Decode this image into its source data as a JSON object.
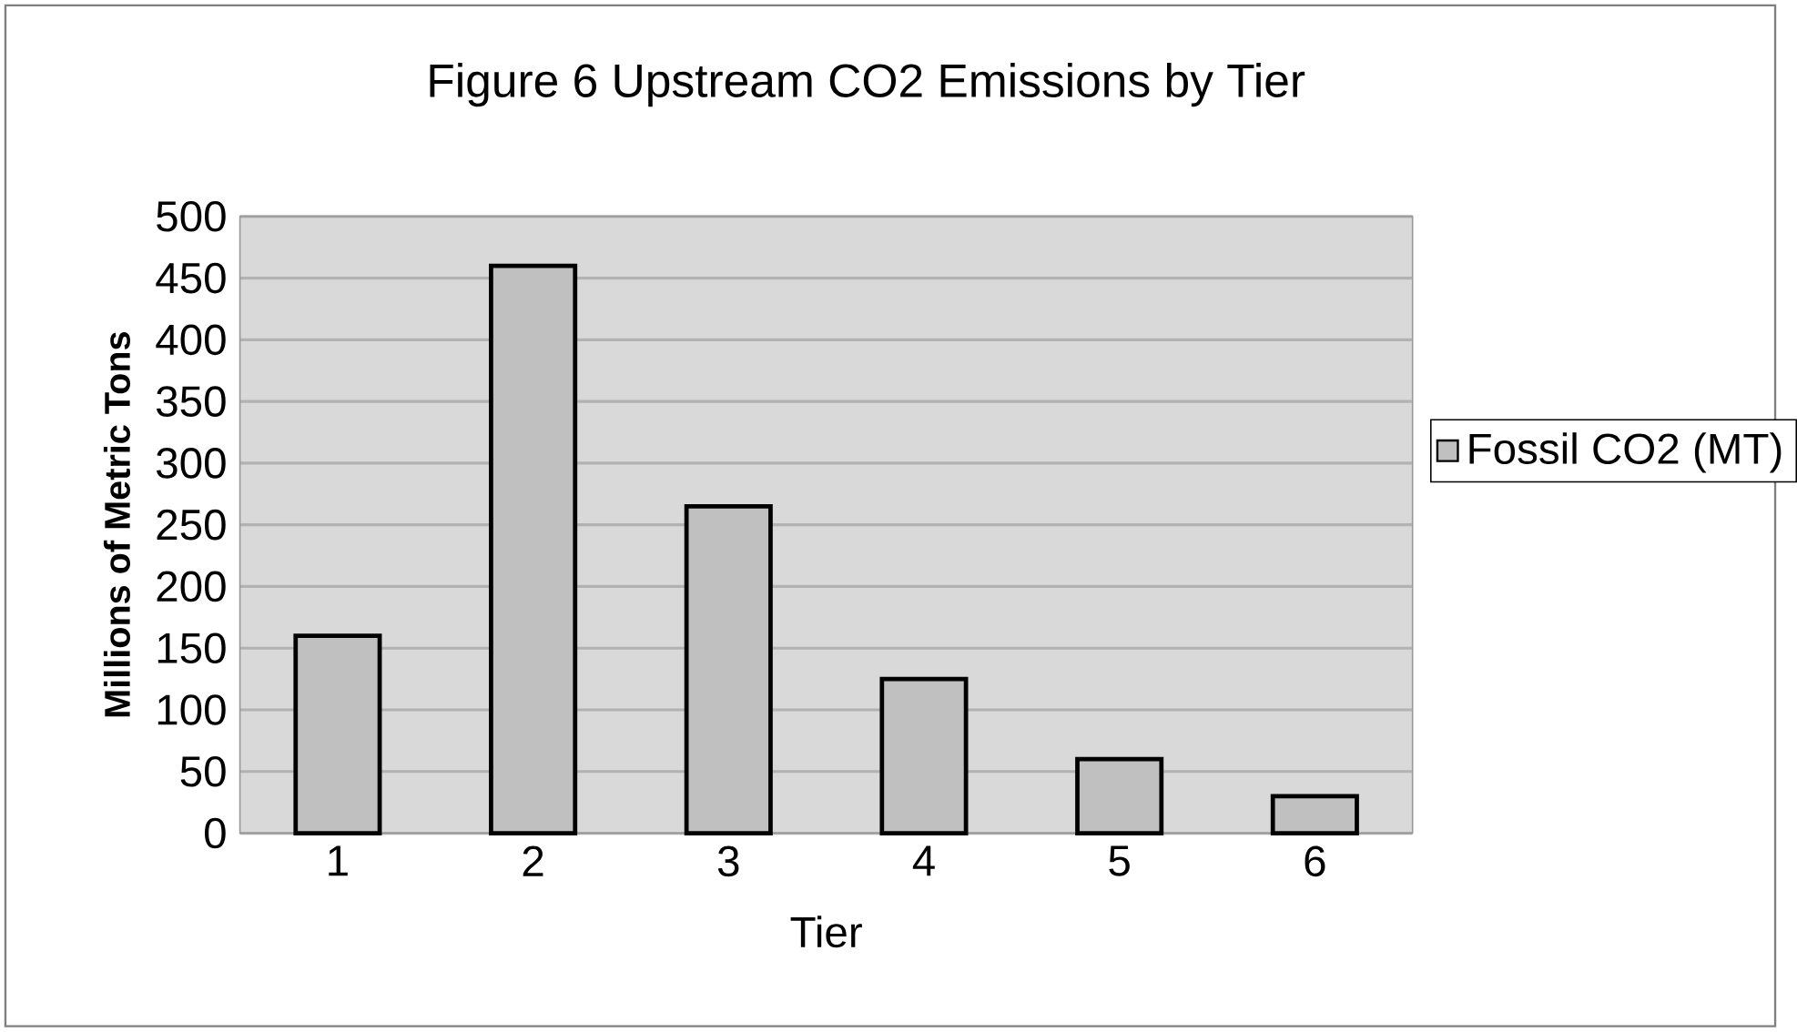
{
  "chart_data": {
    "type": "bar",
    "title": "Figure 6  Upstream CO2 Emissions by Tier",
    "xlabel": "Tier",
    "ylabel": "Millions of Metric Tons",
    "categories": [
      "1",
      "2",
      "3",
      "4",
      "5",
      "6"
    ],
    "series": [
      {
        "name": "Fossil CO2 (MT)",
        "color": "#c0c0c0",
        "values": [
          160,
          460,
          265,
          125,
          60,
          30
        ]
      }
    ],
    "ylim": [
      0,
      500
    ],
    "yticks": [
      0,
      50,
      100,
      150,
      200,
      250,
      300,
      350,
      400,
      450,
      500
    ],
    "grid": "y",
    "legend": "right"
  }
}
